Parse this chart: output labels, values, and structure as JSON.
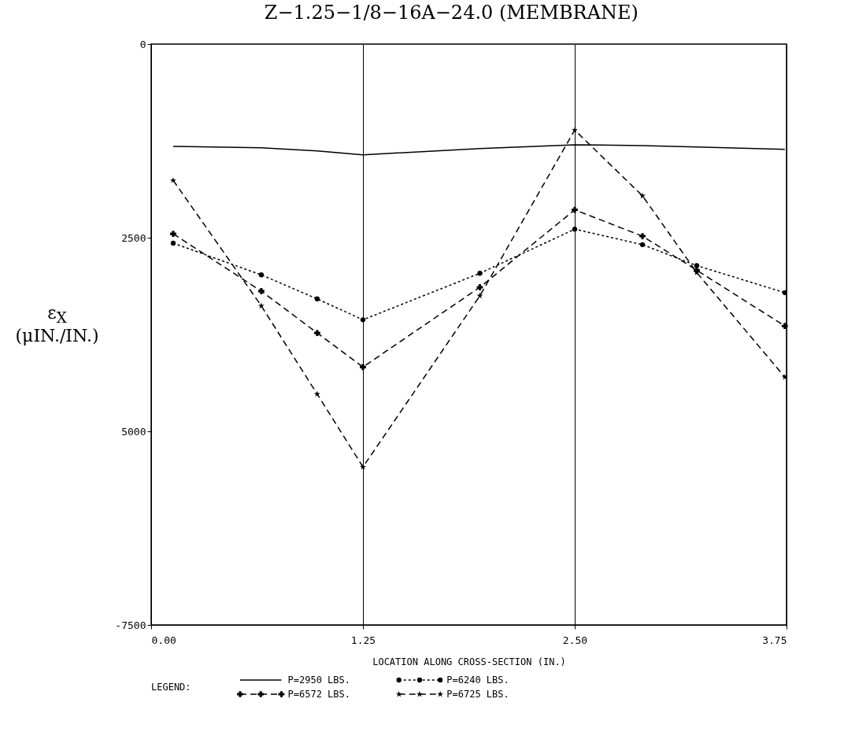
{
  "chart_data": {
    "type": "line",
    "title": "Z−1.25−1/8−16A−24.0 (MEMBRANE)",
    "xlabel": "LOCATION ALONG CROSS-SECTION (IN.)",
    "ylabel": "ε$_{X}$ (μIN./IN.)",
    "legend_title": "LEGEND:",
    "legend": "bottom",
    "grid": "x",
    "x": [
      0.13,
      0.65,
      0.98,
      1.25,
      1.94,
      2.5,
      2.9,
      3.22,
      3.74
    ],
    "xlim": [
      0,
      3.75
    ],
    "xticks": [
      {
        "value": 0,
        "label": "0.00"
      },
      {
        "value": 1.25,
        "label": "1.25"
      },
      {
        "value": 2.5,
        "label": "2.50"
      },
      {
        "value": 3.75,
        "label": "3.75"
      }
    ],
    "ylim": [
      -7500,
      0
    ],
    "yticks": [
      0,
      {
        "value": -2500,
        "label": "2500"
      },
      {
        "value": -5000,
        "label": "5000"
      },
      -7500
    ],
    "series": [
      {
        "name": "P=2950 LBS.",
        "color": "#000000",
        "marker": "none",
        "line_style": "solid",
        "values": [
          -1320,
          -1340,
          -1380,
          -1430,
          -1350,
          -1300,
          -1310,
          -1330,
          -1360
        ]
      },
      {
        "name": "P=6240 LBS.",
        "color": "#000000",
        "marker": "circle",
        "line_style": "dotted",
        "values": [
          -2570,
          -2980,
          -3290,
          -3560,
          -2960,
          -2390,
          -2590,
          -2860,
          -3210
        ]
      },
      {
        "name": "P=6572 LBS.",
        "color": "#000000",
        "marker": "cross",
        "line_style": "dashed",
        "values": [
          -2450,
          -3190,
          -3730,
          -4170,
          -3140,
          -2140,
          -2480,
          -2920,
          -3640
        ]
      },
      {
        "name": "P=6725 LBS.",
        "color": "#000000",
        "marker": "star",
        "line_style": "dashed",
        "values": [
          -1760,
          -3380,
          -4520,
          -5460,
          -3250,
          -1110,
          -1960,
          -2950,
          -4300
        ]
      }
    ]
  }
}
